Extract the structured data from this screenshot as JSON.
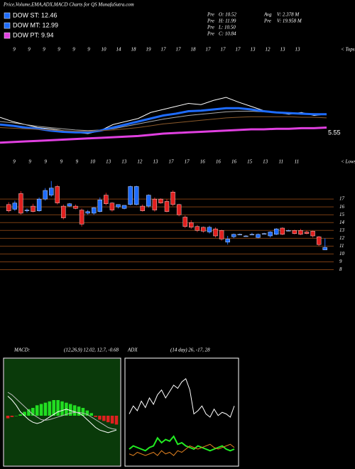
{
  "header": {
    "title": "Price,Volume,EMA,ADX,MACD Charts for QS MunafaSutra.com",
    "legend": [
      {
        "label": "DOW ST: 12.46",
        "color": "#1e6cff"
      },
      {
        "label": "DOW MT: 12.99",
        "color": "#1e6cff"
      },
      {
        "label": "DOW PT: 9.94",
        "color": "#e040e0"
      }
    ],
    "stats": [
      {
        "prefix": "Pre",
        "text": "O: 10.52"
      },
      {
        "prefix": "Pre",
        "text": "H: 11.99"
      },
      {
        "prefix": "Pre",
        "text": "L: 10.50"
      },
      {
        "prefix": "Pre",
        "text": "C: 10.84"
      }
    ],
    "volume": [
      {
        "prefix": "Avg",
        "text": "V: 2.378 M"
      },
      {
        "prefix": "Pre",
        "text": "V: 19.958 M"
      }
    ],
    "tops_row": {
      "label": "< Tops",
      "dates": [
        "9",
        "9",
        "9",
        "9",
        "9",
        "9",
        "10",
        "14",
        "18",
        "19",
        "17",
        "17",
        "18",
        "17",
        "17",
        "17",
        "13",
        "12",
        "13",
        "13"
      ]
    },
    "lows_row": {
      "label": "< Lows",
      "dates": [
        "9",
        "9",
        "9",
        "9",
        "9",
        "10",
        "13",
        "13",
        "12",
        "13",
        "17",
        "17",
        "16",
        "16",
        "16",
        "15",
        "13",
        "11",
        "11"
      ]
    }
  },
  "chart_data": [
    {
      "type": "line",
      "ylim": [
        0,
        100
      ],
      "annotation": "5.55",
      "series": [
        {
          "name": "Price",
          "color": "#ffffff",
          "width": 1,
          "values": [
            47,
            40,
            35,
            30,
            28,
            25,
            22,
            20,
            25,
            35,
            40,
            45,
            55,
            60,
            65,
            70,
            68,
            75,
            80,
            72,
            65,
            58,
            55,
            52,
            55,
            50,
            52
          ]
        },
        {
          "name": "EMA short",
          "color": "#aaaaaa",
          "width": 1,
          "values": [
            40,
            38,
            35,
            32,
            30,
            28,
            26,
            25,
            26,
            28,
            32,
            36,
            40,
            44,
            47,
            50,
            52,
            54,
            56,
            57,
            57,
            56,
            55,
            54,
            53,
            52,
            51
          ]
        },
        {
          "name": "EMA mid",
          "color": "#1e6cff",
          "width": 3,
          "values": [
            35,
            33,
            30,
            28,
            25,
            23,
            22,
            22,
            25,
            30,
            35,
            40,
            45,
            50,
            53,
            57,
            58,
            60,
            62,
            62,
            60,
            57,
            55,
            54,
            53,
            52,
            52
          ]
        },
        {
          "name": "EMA long",
          "color": "#8b5a2b",
          "width": 1,
          "values": [
            30,
            29,
            28,
            27,
            26,
            25,
            24,
            24,
            25,
            26,
            28,
            30,
            33,
            36,
            38,
            40,
            42,
            44,
            46,
            47,
            48,
            48,
            48,
            48,
            47,
            47,
            46
          ]
        },
        {
          "name": "EMA 200",
          "color": "#e040e0",
          "width": 3,
          "values": [
            5,
            6,
            7,
            8,
            9,
            10,
            11,
            12,
            13,
            14,
            15,
            16,
            18,
            20,
            21,
            22,
            23,
            24,
            25,
            26,
            27,
            27,
            28,
            28,
            29,
            29,
            30
          ]
        }
      ]
    },
    {
      "type": "candlestick",
      "ylim": [
        7.5,
        20
      ],
      "yticks": [
        17,
        16,
        15,
        14,
        13,
        12,
        11,
        10,
        9,
        8
      ],
      "grid": true,
      "up_color": "#1e6cff",
      "down_color": "#e0201f",
      "open": [
        16.3,
        15.7,
        17.7,
        15.5,
        16.1,
        15.5,
        17.0,
        17.5,
        18.6,
        16.1,
        16.1,
        16.1,
        15.6,
        15.2,
        15.2,
        15.4,
        17.5,
        16.5,
        16.0,
        15.8,
        16.3,
        16.3,
        16.1,
        16.1,
        17.0,
        17.0,
        16.7,
        17.9,
        16.3,
        14.7,
        14.0,
        13.5,
        13.4,
        12.8,
        13.2,
        13.0,
        11.5,
        12.2,
        12.5,
        12.3,
        12.5,
        12.1,
        12.6,
        12.3,
        12.5,
        13.3,
        13.0,
        13.0,
        13.0,
        12.8,
        12.9,
        12.2,
        10.52
      ],
      "high": [
        16.6,
        16.8,
        18.0,
        15.8,
        16.4,
        17.2,
        18.4,
        19.3,
        18.8,
        16.3,
        16.5,
        16.3,
        15.8,
        15.6,
        16.0,
        17.2,
        17.8,
        16.6,
        16.3,
        16.2,
        18.7,
        18.7,
        16.3,
        17.6,
        17.2,
        17.1,
        17.0,
        18.1,
        16.4,
        14.9,
        14.3,
        13.7,
        13.5,
        13.6,
        13.4,
        13.1,
        12.3,
        12.6,
        12.6,
        12.4,
        12.7,
        12.6,
        12.7,
        12.9,
        13.3,
        13.4,
        13.1,
        13.1,
        13.2,
        13.0,
        13.0,
        12.3,
        11.99
      ],
      "low": [
        15.3,
        15.5,
        15.0,
        15.3,
        15.3,
        15.4,
        16.8,
        17.3,
        16.3,
        14.4,
        16.0,
        15.7,
        13.5,
        15.0,
        15.0,
        15.3,
        16.2,
        15.4,
        15.8,
        15.7,
        16.2,
        16.2,
        15.4,
        15.9,
        15.4,
        16.4,
        15.3,
        16.1,
        14.8,
        13.3,
        13.2,
        12.8,
        12.7,
        12.6,
        12.1,
        11.7,
        11.2,
        12.0,
        12.4,
        12.2,
        12.4,
        12.0,
        12.5,
        12.1,
        12.4,
        12.4,
        12.9,
        12.5,
        12.4,
        12.5,
        12.1,
        11.0,
        10.5
      ],
      "close": [
        15.5,
        16.5,
        15.2,
        15.6,
        15.4,
        17.0,
        18.1,
        18.4,
        16.5,
        14.6,
        16.4,
        15.8,
        13.8,
        15.4,
        15.9,
        16.9,
        16.4,
        15.6,
        16.3,
        16.2,
        18.6,
        18.6,
        15.5,
        17.5,
        15.6,
        16.5,
        15.4,
        16.3,
        15.0,
        13.5,
        13.4,
        13.0,
        12.9,
        13.4,
        12.3,
        11.9,
        11.9,
        12.5,
        12.5,
        12.3,
        12.5,
        12.5,
        12.6,
        12.8,
        13.2,
        12.5,
        13.0,
        12.6,
        12.5,
        12.6,
        12.3,
        11.2,
        10.84
      ]
    },
    {
      "type": "macd",
      "title": "MACD:",
      "subtitle": "(12,26,9) 12.02, 12.7, -0.68",
      "ylim": [
        -3,
        3
      ],
      "background": "#0a3a0a",
      "series": [
        {
          "name": "Histogram",
          "style": "bar",
          "color": "#22dd22",
          "negative_color": "#e0201f",
          "values": [
            -0.2,
            -0.1,
            0,
            0.1,
            0.3,
            0.5,
            0.6,
            0.8,
            0.9,
            1.0,
            1.1,
            1.2,
            1.2,
            1.1,
            1.0,
            0.9,
            0.8,
            0.7,
            0.6,
            0.4,
            0.2,
            -0.1,
            -0.3,
            -0.4,
            -0.5,
            -0.6,
            -0.68
          ]
        },
        {
          "name": "MACD",
          "style": "line",
          "color": "#ffffff",
          "values": [
            1.5,
            1.2,
            0.8,
            0.3,
            0,
            -0.3,
            -0.5,
            -0.6,
            -0.5,
            -0.3,
            -0.1,
            0.1,
            0.3,
            0.4,
            0.5,
            0.4,
            0.3,
            0.2,
            0,
            -0.3,
            -0.6,
            -0.9,
            -1.1,
            -1.2,
            -1.3,
            -1.2,
            -1.1
          ]
        },
        {
          "name": "Signal",
          "style": "line",
          "color": "#bbbbbb",
          "values": [
            1.8,
            1.6,
            1.3,
            1.0,
            0.7,
            0.4,
            0.1,
            -0.1,
            -0.3,
            -0.35,
            -0.3,
            -0.2,
            -0.1,
            0,
            0.1,
            0.2,
            0.25,
            0.25,
            0.2,
            0.1,
            -0.1,
            -0.3,
            -0.5,
            -0.7,
            -0.9,
            -1.0,
            -1.05
          ]
        }
      ]
    },
    {
      "type": "adx",
      "title": "ADX",
      "subtitle": "(14 day) 26, -17, 28",
      "ylim": [
        0,
        60
      ],
      "background": "#000000",
      "series": [
        {
          "name": "ADX",
          "style": "line",
          "color": "#ffffff",
          "values": [
            30,
            35,
            32,
            38,
            34,
            40,
            36,
            42,
            45,
            40,
            44,
            48,
            46,
            50,
            52,
            45,
            30,
            32,
            35,
            30,
            28,
            33,
            29,
            31,
            30,
            28,
            35
          ]
        },
        {
          "name": "+DI",
          "style": "line",
          "color": "#22ee22",
          "values": [
            8,
            10,
            9,
            8,
            7,
            9,
            10,
            15,
            12,
            14,
            13,
            16,
            11,
            12,
            10,
            9,
            8,
            10,
            9,
            8,
            7,
            8,
            9,
            10,
            8,
            7,
            8
          ]
        },
        {
          "name": "-DI",
          "style": "line",
          "color": "#e08020",
          "values": [
            5,
            4,
            6,
            5,
            4,
            5,
            6,
            4,
            7,
            5,
            6,
            4,
            7,
            6,
            8,
            10,
            9,
            8,
            9,
            10,
            11,
            9,
            8,
            9,
            10,
            11,
            9
          ]
        }
      ]
    }
  ]
}
